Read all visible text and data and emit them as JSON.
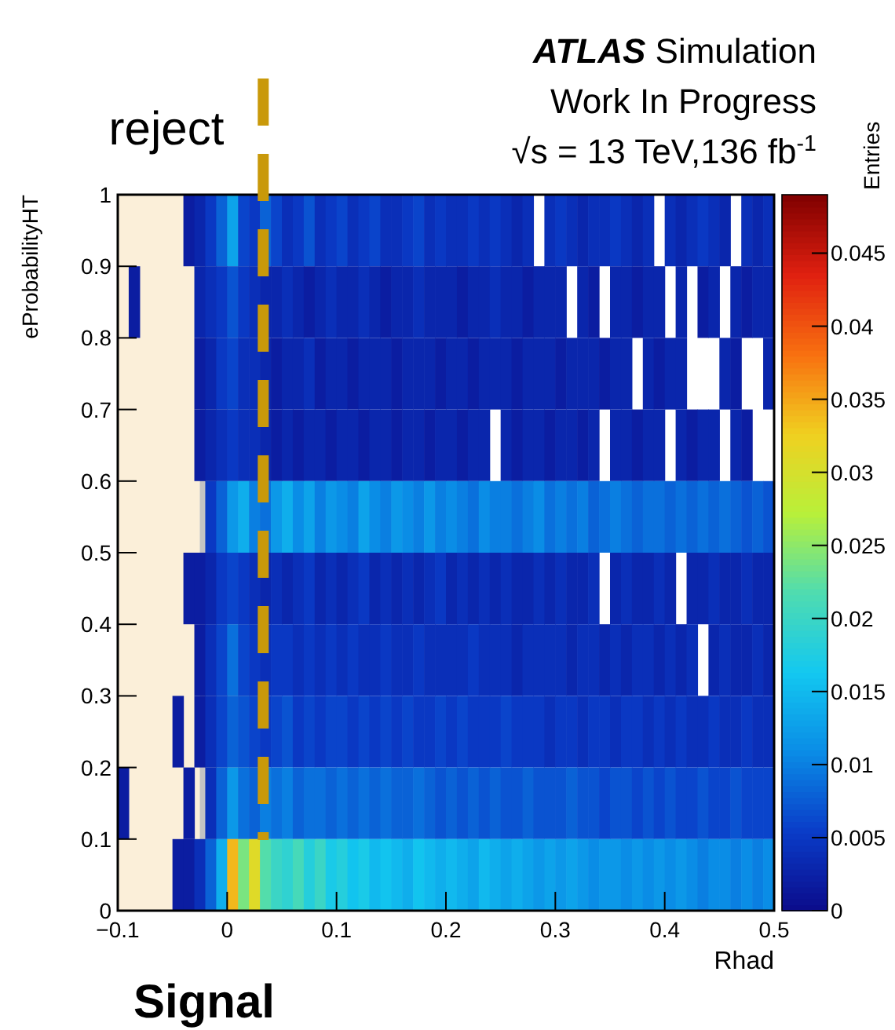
{
  "chart_data": {
    "type": "heatmap",
    "xlabel": "Rhad",
    "ylabel": "eProbabilityHT",
    "clabel": "Entries",
    "annotations": [
      "ATLAS Simulation",
      "Work In Progress",
      "√s = 13 TeV,136 fb$^{-1}$",
      "Signal"
    ],
    "xlim": [
      -0.1,
      0.5
    ],
    "xticks": [
      {
        "value": -0.1,
        "label": "−0.1"
      },
      0,
      0.1,
      0.2,
      0.3,
      0.4,
      0.5
    ],
    "ylim": [
      0,
      1
    ],
    "yticks": [
      0,
      0.1,
      0.2,
      0.3,
      0.4,
      0.5,
      0.6,
      0.7,
      0.8,
      0.9,
      1
    ],
    "clim": [
      0,
      0.049
    ],
    "cticks": [
      0,
      0.005,
      0.01,
      0.015,
      0.02,
      0.025,
      0.03,
      0.035,
      0.04,
      0.045
    ],
    "cells": [
      [
        null,
        null,
        null,
        null,
        null,
        null,
        0.002,
        0.003,
        0.005,
        0.008,
        0.013,
        0.006,
        0.005,
        0.008,
        0.006,
        0.004,
        0.005,
        0.007,
        0.004,
        0.005,
        0.006,
        0.004,
        0.005,
        0.006,
        0.004,
        0.004,
        0.005,
        0.006,
        0.004,
        0.005,
        0.004,
        0.004,
        0.005,
        0.004,
        0.005,
        0.004,
        0.003,
        0.004,
        null,
        0.004,
        0.005,
        0.004,
        0.003,
        0.004,
        0.004,
        0.005,
        0.004,
        0.003,
        0.004,
        null,
        0.004,
        0.003,
        0.004,
        0.005,
        0.004,
        0.003,
        null,
        0.004,
        0.003,
        0.004
      ],
      [
        null,
        0.002,
        null,
        null,
        null,
        null,
        null,
        0.003,
        0.004,
        0.005,
        0.007,
        0.005,
        0.004,
        0.003,
        0.003,
        0.004,
        0.003,
        0.002,
        0.003,
        0.004,
        0.003,
        0.003,
        0.004,
        0.003,
        0.002,
        0.003,
        0.003,
        0.004,
        0.003,
        0.003,
        0.003,
        0.002,
        0.003,
        0.003,
        0.004,
        0.003,
        0.003,
        0.002,
        0.003,
        0.003,
        0.003,
        null,
        0.003,
        0.002,
        null,
        0.003,
        0.003,
        0.002,
        0.003,
        0.003,
        null,
        0.003,
        null,
        0.002,
        0.003,
        null,
        0.003,
        0.002,
        0.003,
        0.003
      ],
      [
        null,
        null,
        null,
        null,
        null,
        null,
        null,
        0.002,
        0.003,
        0.005,
        0.006,
        0.004,
        0.004,
        0.003,
        0.002,
        0.003,
        0.003,
        0.004,
        0.002,
        0.003,
        0.003,
        0.002,
        0.003,
        0.003,
        0.003,
        0.002,
        0.003,
        0.003,
        0.003,
        0.002,
        0.003,
        0.003,
        0.002,
        0.003,
        0.003,
        0.003,
        0.002,
        0.003,
        0.003,
        0.003,
        0.002,
        0.003,
        0.003,
        0.003,
        0.002,
        0.003,
        0.003,
        null,
        0.003,
        0.002,
        0.003,
        0.003,
        null,
        null,
        null,
        0.003,
        0.002,
        null,
        null,
        0.003
      ],
      [
        null,
        null,
        null,
        null,
        null,
        null,
        null,
        0.002,
        0.003,
        0.004,
        0.005,
        0.004,
        0.004,
        0.003,
        0.002,
        0.003,
        0.002,
        0.003,
        0.003,
        0.002,
        0.003,
        0.003,
        0.002,
        0.003,
        0.003,
        0.002,
        0.003,
        0.003,
        0.002,
        0.003,
        0.003,
        0.002,
        0.003,
        0.003,
        null,
        0.003,
        0.002,
        0.003,
        0.003,
        0.002,
        0.003,
        0.003,
        0.002,
        0.003,
        null,
        0.003,
        0.003,
        0.002,
        0.003,
        0.003,
        null,
        0.003,
        0.002,
        0.003,
        0.003,
        null,
        0.003,
        0.002,
        null,
        null
      ],
      [
        null,
        null,
        null,
        null,
        null,
        null,
        null,
        null,
        0.005,
        0.008,
        0.012,
        0.014,
        0.01,
        0.009,
        0.012,
        0.014,
        0.011,
        0.013,
        0.01,
        0.012,
        0.011,
        0.01,
        0.013,
        0.011,
        0.01,
        0.012,
        0.011,
        0.01,
        0.012,
        0.01,
        0.011,
        0.01,
        0.009,
        0.011,
        0.01,
        0.01,
        0.009,
        0.01,
        0.011,
        0.009,
        0.01,
        0.009,
        0.01,
        0.008,
        0.009,
        0.01,
        0.009,
        0.008,
        0.009,
        0.009,
        0.008,
        0.009,
        0.008,
        0.009,
        0.008,
        0.009,
        0.008,
        0.007,
        0.008,
        0.007
      ],
      [
        null,
        null,
        null,
        null,
        null,
        null,
        0.002,
        0.002,
        0.003,
        0.005,
        0.006,
        0.005,
        0.004,
        0.003,
        0.004,
        0.003,
        0.004,
        0.005,
        0.003,
        0.004,
        0.003,
        0.004,
        0.005,
        0.003,
        0.004,
        0.003,
        0.004,
        0.003,
        0.004,
        0.005,
        0.003,
        0.004,
        0.003,
        0.004,
        0.003,
        0.004,
        0.003,
        0.003,
        0.004,
        0.003,
        0.004,
        0.003,
        0.003,
        0.004,
        null,
        0.003,
        0.004,
        0.003,
        0.003,
        0.004,
        0.003,
        null,
        0.003,
        0.003,
        0.004,
        0.003,
        0.003,
        0.004,
        0.003,
        0.003
      ],
      [
        null,
        null,
        null,
        null,
        null,
        null,
        null,
        0.002,
        0.004,
        0.006,
        0.009,
        0.006,
        0.005,
        0.004,
        0.005,
        0.005,
        0.004,
        0.005,
        0.004,
        0.005,
        0.004,
        0.005,
        0.004,
        0.004,
        0.005,
        0.004,
        0.004,
        0.005,
        0.004,
        0.004,
        0.004,
        0.004,
        0.005,
        0.004,
        0.004,
        0.004,
        0.003,
        0.004,
        0.004,
        0.004,
        0.004,
        0.003,
        0.004,
        0.004,
        0.003,
        0.004,
        0.003,
        0.004,
        0.004,
        0.003,
        0.004,
        0.003,
        0.004,
        null,
        0.003,
        0.004,
        0.003,
        0.003,
        0.004,
        0.003
      ],
      [
        null,
        null,
        null,
        null,
        null,
        0.002,
        null,
        0.002,
        0.004,
        0.006,
        0.008,
        0.007,
        0.006,
        0.005,
        0.006,
        0.007,
        0.005,
        0.006,
        0.005,
        0.006,
        0.006,
        0.005,
        0.006,
        0.005,
        0.006,
        0.005,
        0.006,
        0.005,
        0.005,
        0.006,
        0.005,
        0.006,
        0.005,
        0.005,
        0.005,
        0.006,
        0.005,
        0.005,
        0.005,
        0.004,
        0.005,
        0.005,
        0.004,
        0.005,
        0.005,
        0.004,
        0.005,
        0.005,
        0.004,
        0.005,
        0.004,
        0.005,
        0.004,
        0.004,
        0.005,
        0.004,
        0.004,
        0.005,
        0.004,
        0.004
      ],
      [
        0.002,
        null,
        null,
        null,
        null,
        null,
        0.002,
        null,
        0.004,
        0.008,
        0.012,
        0.009,
        0.008,
        0.01,
        0.009,
        0.01,
        0.008,
        0.009,
        0.009,
        0.008,
        0.009,
        0.008,
        0.009,
        0.008,
        0.009,
        0.008,
        0.008,
        0.009,
        0.008,
        0.007,
        0.008,
        0.007,
        0.008,
        0.007,
        0.008,
        0.007,
        0.007,
        0.008,
        0.007,
        0.007,
        0.007,
        0.008,
        0.007,
        0.007,
        0.006,
        0.007,
        0.007,
        0.006,
        0.007,
        0.006,
        0.007,
        0.006,
        0.006,
        0.007,
        0.006,
        0.006,
        0.007,
        0.006,
        0.006,
        0.006
      ],
      [
        null,
        null,
        null,
        null,
        null,
        0.002,
        0.002,
        0.004,
        0.008,
        0.014,
        0.034,
        0.024,
        0.031,
        0.022,
        0.02,
        0.019,
        0.021,
        0.018,
        0.02,
        0.017,
        0.018,
        0.016,
        0.017,
        0.015,
        0.016,
        0.015,
        0.014,
        0.016,
        0.015,
        0.014,
        0.015,
        0.014,
        0.013,
        0.015,
        0.014,
        0.013,
        0.014,
        0.013,
        0.012,
        0.013,
        0.012,
        0.013,
        0.012,
        0.011,
        0.012,
        0.012,
        0.011,
        0.012,
        0.011,
        0.012,
        0.011,
        0.012,
        0.011,
        0.01,
        0.011,
        0.011,
        0.01,
        0.011,
        0.01,
        0.011
      ]
    ],
    "bands": [
      {
        "axis": "x",
        "from": -0.1,
        "to": -0.025,
        "color": "#f6dcaa"
      },
      {
        "axis": "x",
        "from": -0.025,
        "to": 0.035,
        "color": "#7a7a7a"
      }
    ],
    "ref_lines": [
      {
        "axis": "x",
        "value": 0.033,
        "label": "reject",
        "color": "#c9990a",
        "line_style": "dashed"
      }
    ]
  }
}
